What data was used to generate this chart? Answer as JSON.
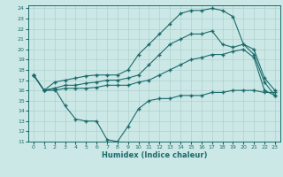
{
  "xlabel": "Humidex (Indice chaleur)",
  "bg_color": "#cce8e6",
  "line_color": "#1a6b6b",
  "grid_color": "#aed0ce",
  "xlim": [
    -0.5,
    23.5
  ],
  "ylim": [
    11,
    24.3
  ],
  "xticks": [
    0,
    1,
    2,
    3,
    4,
    5,
    6,
    7,
    8,
    9,
    10,
    11,
    12,
    13,
    14,
    15,
    16,
    17,
    18,
    19,
    20,
    21,
    22,
    23
  ],
  "yticks": [
    11,
    12,
    13,
    14,
    15,
    16,
    17,
    18,
    19,
    20,
    21,
    22,
    23,
    24
  ],
  "line1_x": [
    0,
    1,
    2,
    3,
    4,
    5,
    6,
    7,
    8,
    9,
    10,
    11,
    12,
    13,
    14,
    15,
    16,
    17,
    18,
    19,
    20,
    21,
    22,
    23
  ],
  "line1_y": [
    17.5,
    16.0,
    16.8,
    17.0,
    17.2,
    17.4,
    17.5,
    17.5,
    17.5,
    18.0,
    19.5,
    20.5,
    21.5,
    22.5,
    23.5,
    23.8,
    23.8,
    24.0,
    23.8,
    23.2,
    20.5,
    20.0,
    17.2,
    16.0
  ],
  "line2_x": [
    0,
    1,
    2,
    3,
    4,
    5,
    6,
    7,
    8,
    9,
    10,
    11,
    12,
    13,
    14,
    15,
    16,
    17,
    18,
    19,
    20,
    21,
    22,
    23
  ],
  "line2_y": [
    17.5,
    16.0,
    16.2,
    16.5,
    16.5,
    16.7,
    16.8,
    17.0,
    17.0,
    17.2,
    17.5,
    18.5,
    19.5,
    20.5,
    21.0,
    21.5,
    21.5,
    21.8,
    20.5,
    20.2,
    20.5,
    19.5,
    16.8,
    15.5
  ],
  "line3_x": [
    0,
    1,
    2,
    3,
    4,
    5,
    6,
    7,
    8,
    9,
    10,
    11,
    12,
    13,
    14,
    15,
    16,
    17,
    18,
    19,
    20,
    21,
    22,
    23
  ],
  "line3_y": [
    17.5,
    16.0,
    16.0,
    16.2,
    16.2,
    16.2,
    16.3,
    16.5,
    16.5,
    16.5,
    16.8,
    17.0,
    17.5,
    18.0,
    18.5,
    19.0,
    19.2,
    19.5,
    19.5,
    19.8,
    20.0,
    19.2,
    16.0,
    15.5
  ],
  "line4_x": [
    0,
    1,
    2,
    3,
    4,
    5,
    6,
    7,
    8,
    9,
    10,
    11,
    12,
    13,
    14,
    15,
    16,
    17,
    18,
    19,
    20,
    21,
    22,
    23
  ],
  "line4_y": [
    17.5,
    16.0,
    16.2,
    14.5,
    13.2,
    13.0,
    13.0,
    11.2,
    11.0,
    12.5,
    14.2,
    15.0,
    15.2,
    15.2,
    15.5,
    15.5,
    15.5,
    15.8,
    15.8,
    16.0,
    16.0,
    16.0,
    15.8,
    15.8
  ]
}
